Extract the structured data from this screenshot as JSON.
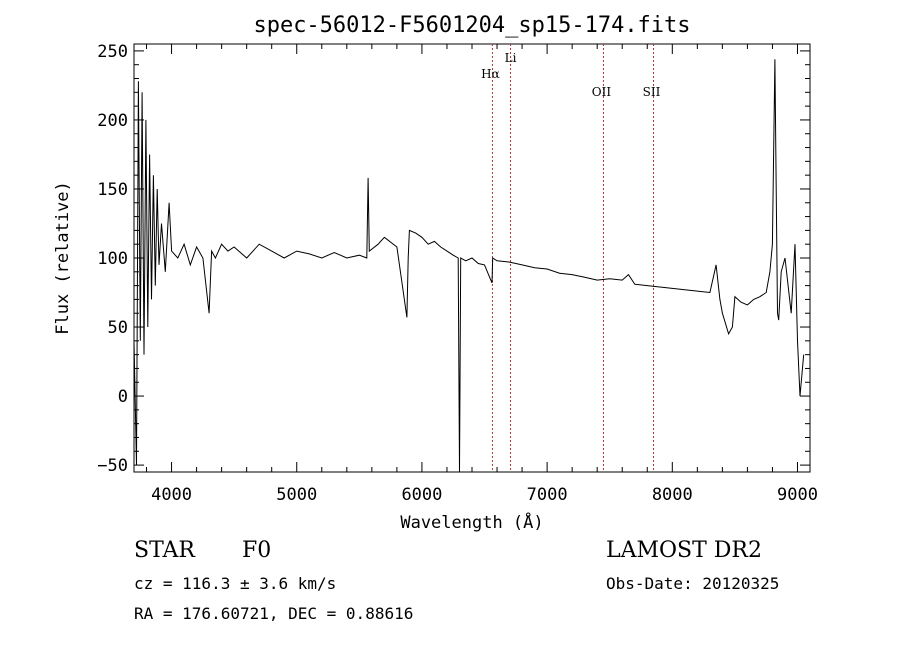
{
  "chart_data": {
    "type": "line",
    "title": "spec-56012-F5601204_sp15-174.fits",
    "xlabel": "Wavelength (Å)",
    "ylabel": "Flux (relative)",
    "xlim": [
      3700,
      9100
    ],
    "ylim": [
      -55,
      255
    ],
    "xticks": [
      4000,
      5000,
      6000,
      7000,
      8000,
      9000
    ],
    "yticks": [
      -50,
      0,
      50,
      100,
      150,
      200,
      250
    ],
    "ytick_labels": [
      "−50",
      "0",
      "50",
      "100",
      "150",
      "200",
      "250"
    ],
    "lines": [
      {
        "name": "Hα",
        "wavelength": 6563
      },
      {
        "name": "Li",
        "wavelength": 6708
      },
      {
        "name": "OII",
        "wavelength": 7450
      },
      {
        "name": "SII",
        "wavelength": 7850
      }
    ],
    "series": [
      {
        "name": "flux",
        "x": [
          3700,
          3720,
          3735,
          3750,
          3765,
          3780,
          3795,
          3810,
          3825,
          3840,
          3855,
          3870,
          3885,
          3900,
          3920,
          3950,
          3980,
          4000,
          4050,
          4100,
          4150,
          4200,
          4250,
          4300,
          4320,
          4350,
          4400,
          4450,
          4500,
          4600,
          4700,
          4800,
          4900,
          5000,
          5100,
          5200,
          5300,
          5400,
          5500,
          5560,
          5570,
          5580,
          5650,
          5700,
          5800,
          5880,
          5890,
          5900,
          5950,
          6000,
          6050,
          6100,
          6150,
          6200,
          6250,
          6290,
          6300,
          6310,
          6350,
          6400,
          6450,
          6500,
          6560,
          6565,
          6600,
          6700,
          6800,
          6900,
          7000,
          7100,
          7200,
          7300,
          7400,
          7500,
          7600,
          7650,
          7700,
          7800,
          7900,
          8000,
          8100,
          8200,
          8300,
          8350,
          8380,
          8400,
          8450,
          8480,
          8500,
          8550,
          8600,
          8650,
          8700,
          8750,
          8780,
          8800,
          8820,
          8830,
          8840,
          8850,
          8870,
          8900,
          8950,
          8980,
          9000,
          9020,
          9050
        ],
        "values": [
          40,
          -50,
          228,
          40,
          220,
          30,
          200,
          50,
          175,
          70,
          160,
          80,
          150,
          95,
          125,
          90,
          140,
          105,
          100,
          110,
          95,
          108,
          100,
          60,
          105,
          100,
          110,
          105,
          108,
          100,
          110,
          105,
          100,
          105,
          103,
          100,
          104,
          100,
          102,
          100,
          158,
          105,
          110,
          115,
          108,
          57,
          100,
          120,
          118,
          115,
          110,
          112,
          108,
          105,
          102,
          100,
          -55,
          100,
          98,
          100,
          96,
          95,
          82,
          100,
          98,
          97,
          95,
          93,
          92,
          89,
          88,
          86,
          84,
          85,
          84,
          88,
          81,
          80,
          79,
          78,
          77,
          76,
          75,
          95,
          70,
          60,
          45,
          50,
          72,
          68,
          66,
          70,
          72,
          75,
          90,
          110,
          244,
          150,
          60,
          55,
          90,
          100,
          60,
          110,
          40,
          0,
          30
        ]
      }
    ]
  },
  "info": {
    "object_class": "STAR",
    "subclass": "F0",
    "survey": "LAMOST DR2",
    "cz": "cz = 116.3 ± 3.6 km/s",
    "obs_date": "Obs-Date: 20120325",
    "radec": "RA = 176.60721, DEC =   0.88616"
  }
}
